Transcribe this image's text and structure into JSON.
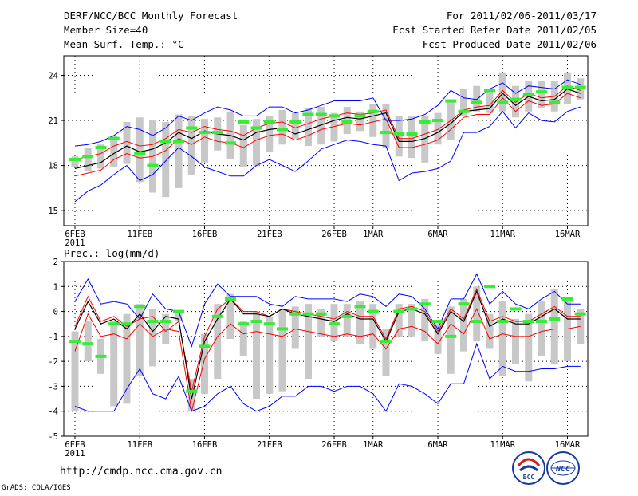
{
  "header": {
    "title": "DERF/NCC/BCC Monthly Forecast",
    "member_size": "Member Size=40",
    "forecast_period": "For 2011/02/06-2011/03/17",
    "started_date": "Fcst Started Refer Date 2011/02/05",
    "produced_date": "Fcst Produced Date 2011/02/06"
  },
  "footer": {
    "url": "http://cmdp.ncc.cma.gov.cn",
    "credit": "GrADS: COLA/IGES",
    "logo_bcc": "BCC",
    "logo_ncc": "NCC"
  },
  "colors": {
    "envelope": "#0000ff",
    "spread": "#ff0000",
    "mean": "#000000",
    "box": "#c8c8c8",
    "marker": "#33ee33"
  },
  "chart_data": [
    {
      "type": "line",
      "title": "Mean Surf. Temp.: °C",
      "ylim": [
        14,
        25.3
      ],
      "yticks": [
        15,
        18,
        21,
        24
      ],
      "ytick_labels": [
        "15",
        "18",
        "21",
        "24"
      ],
      "xtick_days": [
        0,
        5,
        10,
        15,
        20,
        23,
        28,
        33,
        38
      ],
      "xtick_labels": [
        "6FEB",
        "11FEB",
        "16FEB",
        "21FEB",
        "26FEB",
        "1MAR",
        "6MAR",
        "11MAR",
        "16MAR"
      ],
      "xtick_sublabel": "2011",
      "days": 40,
      "series": [
        {
          "name": "max",
          "values": [
            19.3,
            19.4,
            19.6,
            20.0,
            20.6,
            20.4,
            20.0,
            20.5,
            21.3,
            21.0,
            21.5,
            21.9,
            21.7,
            21.3,
            21.3,
            21.9,
            21.9,
            21.5,
            21.7,
            22.0,
            22.3,
            22.3,
            22.3,
            22.5,
            21.0,
            21.0,
            21.1,
            21.4,
            22.0,
            23.0,
            22.5,
            22.4,
            23.1,
            23.5,
            22.8,
            23.3,
            23.2,
            23.1,
            23.7,
            23.4
          ]
        },
        {
          "name": "upper",
          "values": [
            18.4,
            18.6,
            18.8,
            19.3,
            19.6,
            19.3,
            19.4,
            19.8,
            20.4,
            20.2,
            20.6,
            20.4,
            20.3,
            20.0,
            20.5,
            20.8,
            20.9,
            20.5,
            20.8,
            21.1,
            21.3,
            21.5,
            21.4,
            21.5,
            21.7,
            19.8,
            19.8,
            20.1,
            20.4,
            21.0,
            21.7,
            21.9,
            22.0,
            23.0,
            22.2,
            22.8,
            22.5,
            22.6,
            23.3,
            23.0
          ]
        },
        {
          "name": "mean",
          "values": [
            17.8,
            18.0,
            18.2,
            18.8,
            19.3,
            18.9,
            19.1,
            19.5,
            20.2,
            19.8,
            20.3,
            20.1,
            20.0,
            19.7,
            20.2,
            20.4,
            20.5,
            20.1,
            20.4,
            20.7,
            21.0,
            21.2,
            21.1,
            21.3,
            21.5,
            19.6,
            19.6,
            19.8,
            20.2,
            20.8,
            21.6,
            21.7,
            21.8,
            22.8,
            22.0,
            22.6,
            22.3,
            22.4,
            23.1,
            22.8
          ]
        },
        {
          "name": "lower",
          "values": [
            17.3,
            17.5,
            17.7,
            18.4,
            18.8,
            18.5,
            18.6,
            19.0,
            19.8,
            19.4,
            19.9,
            19.6,
            19.5,
            19.2,
            19.7,
            20.0,
            20.1,
            19.7,
            20.0,
            20.4,
            20.6,
            20.8,
            20.7,
            20.9,
            21.1,
            19.2,
            19.2,
            19.4,
            19.7,
            20.4,
            21.2,
            21.4,
            21.4,
            22.5,
            21.6,
            22.3,
            22.0,
            22.1,
            22.8,
            22.5
          ]
        },
        {
          "name": "min",
          "values": [
            15.6,
            16.3,
            16.7,
            17.4,
            18.0,
            17.0,
            17.4,
            18.3,
            19.2,
            18.6,
            17.9,
            17.6,
            17.3,
            17.3,
            18.0,
            18.4,
            18.0,
            17.6,
            18.3,
            19.1,
            19.4,
            19.7,
            19.6,
            19.4,
            19.3,
            17.0,
            17.5,
            17.6,
            17.8,
            18.3,
            20.2,
            20.2,
            20.6,
            21.6,
            20.5,
            21.5,
            21.0,
            20.9,
            21.6,
            21.9
          ]
        },
        {
          "name": "box_low",
          "values": [
            17.9,
            17.6,
            17.8,
            17.9,
            18.1,
            16.9,
            16.2,
            15.9,
            16.5,
            17.4,
            18.2,
            19.0,
            18.4,
            17.9,
            18.0,
            18.9,
            19.4,
            19.8,
            19.3,
            19.4,
            19.6,
            20.1,
            20.3,
            19.9,
            19.2,
            18.6,
            18.5,
            18.2,
            19.4,
            19.7,
            21.3,
            21.6,
            21.5,
            21.6,
            21.2,
            21.6,
            21.8,
            21.6,
            22.1,
            22.4
          ]
        },
        {
          "name": "box_high",
          "values": [
            18.6,
            19.2,
            19.4,
            20.0,
            20.9,
            21.2,
            21.0,
            20.9,
            21.4,
            21.3,
            21.1,
            21.2,
            21.6,
            20.7,
            21.1,
            21.3,
            21.7,
            21.5,
            21.8,
            21.9,
            21.5,
            21.9,
            21.6,
            22.1,
            22.1,
            21.3,
            21.3,
            21.3,
            21.5,
            22.4,
            23.1,
            23.3,
            23.1,
            24.2,
            23.3,
            23.6,
            23.6,
            23.6,
            24.2,
            23.8
          ]
        },
        {
          "name": "marker",
          "values": [
            18.4,
            18.6,
            19.2,
            19.8,
            null,
            18.8,
            18.0,
            19.6,
            19.6,
            20.5,
            20.2,
            20.2,
            19.5,
            20.9,
            20.5,
            20.9,
            20.4,
            20.9,
            21.4,
            21.4,
            21.3,
            20.9,
            21.3,
            21.6,
            20.2,
            20.1,
            20.1,
            20.9,
            21.0,
            22.3,
            21.6,
            22.2,
            23.0,
            22.2,
            22.4,
            22.7,
            22.9,
            22.2,
            23.2,
            23.2
          ]
        }
      ]
    },
    {
      "type": "line",
      "title": "Prec.: log(mm/d)",
      "ylim": [
        -5,
        2
      ],
      "yticks": [
        -5,
        -4,
        -3,
        -2,
        -1,
        0,
        1,
        2
      ],
      "ytick_labels": [
        "-5",
        "-4",
        "-3",
        "-2",
        "-1",
        "0",
        "1",
        "2"
      ],
      "xtick_days": [
        0,
        5,
        10,
        15,
        20,
        23,
        28,
        33,
        38
      ],
      "xtick_labels": [
        "6FEB",
        "11FEB",
        "16FEB",
        "21FEB",
        "26FEB",
        "1MAR",
        "6MAR",
        "11MAR",
        "16MAR"
      ],
      "xtick_sublabel": "2011",
      "days": 40,
      "series": [
        {
          "name": "max",
          "values": [
            0.4,
            1.3,
            0.3,
            0.4,
            0.3,
            -0.3,
            0.7,
            0.1,
            0.0,
            -1.4,
            0.3,
            1.1,
            0.6,
            0.6,
            0.6,
            0.3,
            0.2,
            0.6,
            0.5,
            0.5,
            0.5,
            0.4,
            0.7,
            0.6,
            0.2,
            0.7,
            0.6,
            0.1,
            -0.7,
            0.5,
            0.5,
            1.5,
            0.3,
            0.8,
            0.3,
            0.1,
            0.5,
            0.8,
            0.3,
            0.3
          ]
        },
        {
          "name": "upper",
          "values": [
            -0.6,
            0.6,
            -0.4,
            -0.2,
            -0.6,
            -0.3,
            -0.2,
            -0.8,
            -0.4,
            -3.2,
            -1.0,
            0.1,
            0.5,
            0.0,
            0.0,
            -0.2,
            0.1,
            0.0,
            -0.1,
            -0.2,
            -0.3,
            0.0,
            -0.2,
            -0.2,
            -1.1,
            0.1,
            0.2,
            0.0,
            -0.8,
            0.1,
            -0.3,
            0.9,
            -0.4,
            -0.2,
            -0.4,
            -0.4,
            -0.1,
            0.2,
            -0.2,
            -0.2
          ]
        },
        {
          "name": "mean",
          "values": [
            -0.7,
            0.4,
            -0.5,
            -0.3,
            -0.7,
            -0.1,
            -0.8,
            -0.2,
            -0.3,
            -3.5,
            -1.2,
            -0.3,
            0.5,
            -0.1,
            -0.1,
            -0.2,
            0.1,
            -0.1,
            -0.2,
            -0.3,
            -0.4,
            -0.1,
            -0.3,
            -0.3,
            -1.2,
            0.0,
            0.1,
            -0.1,
            -0.9,
            0.0,
            -0.4,
            0.8,
            -0.6,
            -0.3,
            -0.5,
            -0.5,
            -0.2,
            0.1,
            -0.3,
            -0.3
          ]
        },
        {
          "name": "lower",
          "values": [
            -1.6,
            -0.1,
            -1.0,
            -0.9,
            -1.1,
            -0.5,
            -1.0,
            -0.7,
            -0.8,
            -4.0,
            -1.9,
            -1.0,
            -0.5,
            -0.9,
            -0.8,
            -0.9,
            -1.0,
            -0.7,
            -0.8,
            -0.9,
            -1.0,
            -0.9,
            -1.0,
            -0.9,
            -1.5,
            -0.7,
            -0.6,
            -0.8,
            -1.3,
            -0.5,
            -0.9,
            0.1,
            -1.1,
            -0.9,
            -1.0,
            -1.0,
            -0.8,
            -0.7,
            -0.7,
            -0.6
          ]
        },
        {
          "name": "min",
          "values": [
            -3.8,
            -4.0,
            -4.0,
            -4.0,
            -3.1,
            -2.3,
            -3.3,
            -3.5,
            -2.6,
            -4.0,
            -3.8,
            -3.3,
            -3.0,
            -3.7,
            -4.0,
            -3.8,
            -3.4,
            -3.4,
            -3.0,
            -3.0,
            -3.2,
            -3.0,
            -3.0,
            -3.3,
            -4.0,
            -2.9,
            -3.0,
            -3.3,
            -3.7,
            -2.9,
            -2.9,
            -1.3,
            -2.7,
            -2.2,
            -2.4,
            -2.4,
            -2.3,
            -2.3,
            -2.2,
            -2.2
          ]
        },
        {
          "name": "box_low",
          "values": [
            -4.0,
            -2.0,
            -2.5,
            -3.8,
            -3.7,
            -2.6,
            -2.2,
            -1.3,
            -0.4,
            -4.0,
            -3.3,
            -2.7,
            -1.1,
            -1.8,
            -3.5,
            -3.3,
            -3.2,
            -1.5,
            -2.7,
            -1.0,
            -1.2,
            -1.0,
            -1.3,
            -1.5,
            -2.6,
            -1.0,
            -1.0,
            -1.2,
            -1.7,
            -2.5,
            -1.6,
            -1.2,
            -1.5,
            -2.6,
            -2.1,
            -2.8,
            -1.8,
            -2.1,
            -2.0,
            -1.3
          ]
        },
        {
          "name": "box_high",
          "values": [
            -0.8,
            -0.4,
            -1.1,
            -0.4,
            -0.1,
            0.3,
            0.1,
            -0.1,
            0.0,
            -2.7,
            -0.9,
            0.3,
            0.7,
            -0.4,
            0.0,
            -0.2,
            0.1,
            0.2,
            0.3,
            0.1,
            0.3,
            0.3,
            0.4,
            0.3,
            -0.7,
            0.3,
            0.3,
            0.5,
            -0.5,
            0.2,
            0.5,
            1.0,
            -0.1,
            0.4,
            -0.3,
            -0.1,
            0.4,
            0.9,
            0.4,
            0.1
          ]
        },
        {
          "name": "marker",
          "values": [
            -1.2,
            -1.3,
            -1.8,
            -0.5,
            -0.5,
            0.2,
            -0.4,
            -0.4,
            0.0,
            -3.2,
            -1.4,
            -0.2,
            0.5,
            -0.5,
            -0.4,
            -0.5,
            -0.7,
            -0.1,
            -0.1,
            -0.1,
            -0.5,
            -0.2,
            0.2,
            0.0,
            -1.2,
            0.0,
            0.1,
            0.3,
            -0.4,
            -1.0,
            0.3,
            -0.4,
            1.0,
            -0.4,
            0.1,
            -0.4,
            -0.4,
            -0.3,
            0.5,
            -0.1
          ]
        }
      ]
    }
  ]
}
